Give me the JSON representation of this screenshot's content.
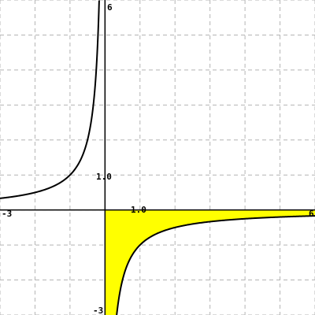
{
  "chart_data": {
    "type": "line",
    "title": "",
    "xlabel": "",
    "ylabel": "",
    "xlim": [
      -3,
      6
    ],
    "ylim": [
      -3,
      6
    ],
    "grid": true,
    "grid_step": 1,
    "tick_labels": {
      "x_min": "-3",
      "x_max": "6",
      "y_min": "-3",
      "y_max": "6",
      "x_unit": "1.0",
      "y_unit": "1.0"
    },
    "series": [
      {
        "curve": "y = -1/x",
        "x": [
          -3,
          -2.5,
          -2,
          -1.5,
          -1.25,
          -1,
          -0.9,
          -0.8,
          -0.7,
          -0.6,
          -0.5,
          -0.45,
          -0.4,
          -0.35,
          -0.3,
          -0.27,
          -0.25,
          -0.22,
          -0.2,
          -0.18,
          -0.167
        ],
        "y": [
          0.333,
          0.4,
          0.5,
          0.667,
          0.8,
          1,
          1.111,
          1.25,
          1.429,
          1.667,
          2,
          2.222,
          2.5,
          2.857,
          3.333,
          3.704,
          4,
          4.545,
          5,
          5.556,
          6
        ],
        "color": "#000000"
      },
      {
        "curve": "y = -1/x",
        "x": [
          0.333,
          0.35,
          0.4,
          0.45,
          0.5,
          0.6,
          0.7,
          0.8,
          0.9,
          1,
          1.25,
          1.5,
          2,
          2.5,
          3,
          3.5,
          4,
          4.5,
          5,
          5.5,
          6
        ],
        "y": [
          -3,
          -2.857,
          -2.5,
          -2.222,
          -2,
          -1.667,
          -1.429,
          -1.25,
          -1.111,
          -1,
          -0.8,
          -0.667,
          -0.5,
          -0.4,
          -0.333,
          -0.286,
          -0.25,
          -0.222,
          -0.2,
          -0.182,
          -0.167
        ],
        "color": "#000000"
      }
    ],
    "shaded_region": {
      "description": "area between y = -1/x and the x-axis for x > 0, clipped at y = -3",
      "x_from": 0,
      "x_to": 6,
      "color": "#ffff00"
    }
  }
}
